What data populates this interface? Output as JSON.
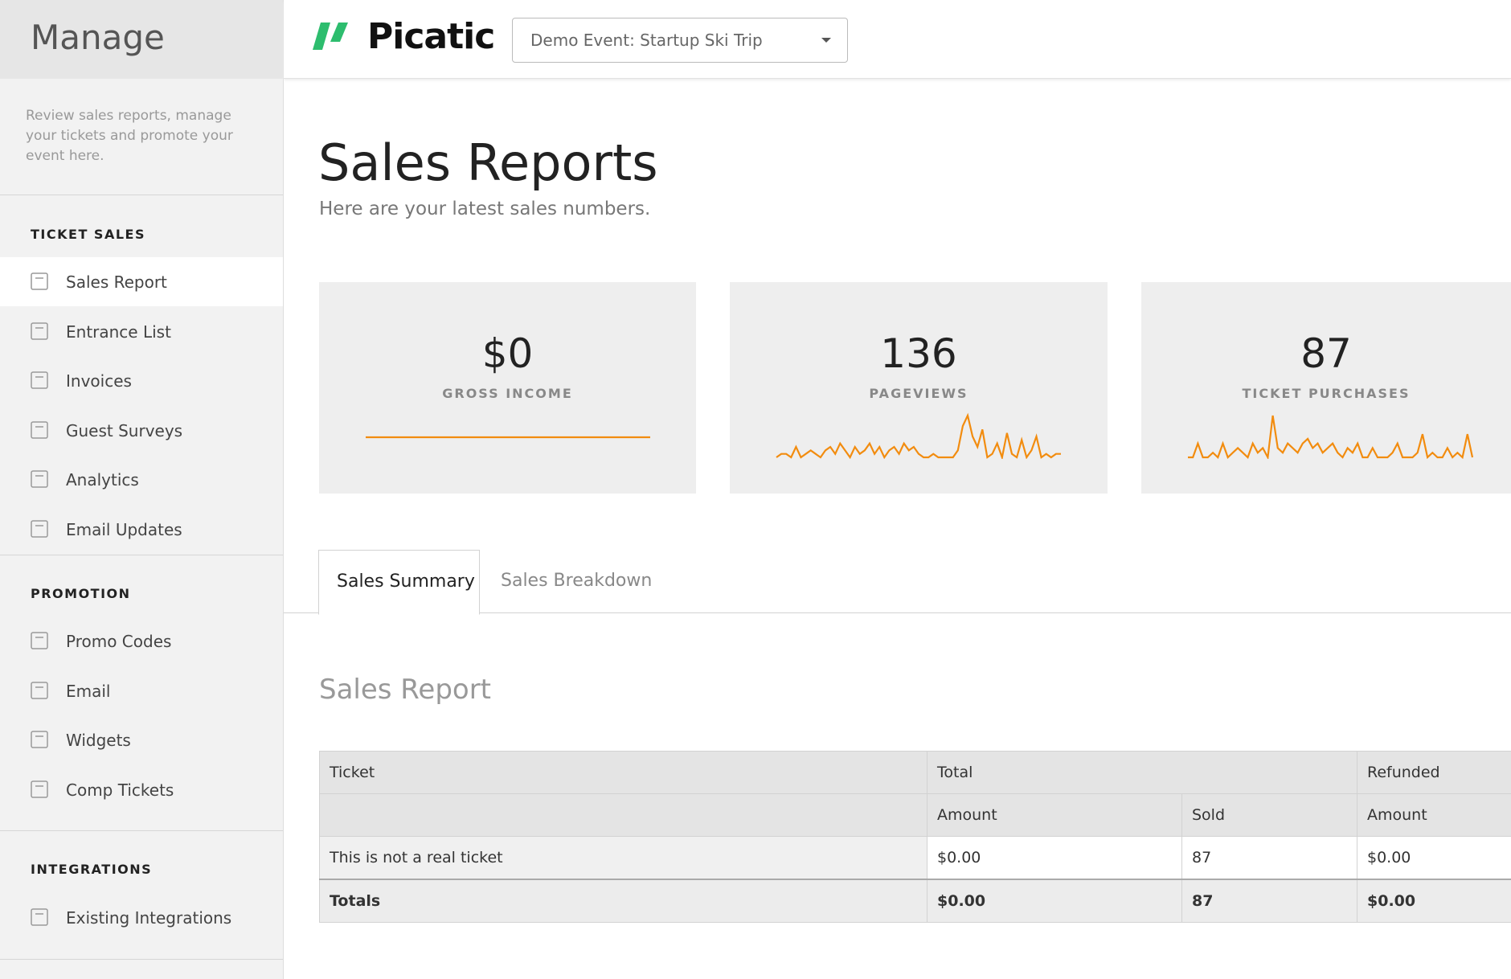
{
  "sidebar": {
    "title": "Manage",
    "description": "Review sales reports, manage your tickets and promote your event here.",
    "sections": [
      {
        "heading": "TICKET SALES",
        "items": [
          "Sales Report",
          "Entrance List",
          "Invoices",
          "Guest Surveys",
          "Analytics",
          "Email Updates"
        ]
      },
      {
        "heading": "PROMOTION",
        "items": [
          "Promo Codes",
          "Email",
          "Widgets",
          "Comp Tickets"
        ]
      },
      {
        "heading": "INTEGRATIONS",
        "items": [
          "Existing Integrations"
        ]
      }
    ]
  },
  "header": {
    "logo": "Picatic",
    "event_select": "Demo Event: Startup Ski Trip"
  },
  "page": {
    "title": "Sales Reports",
    "subtitle": "Here are your latest sales numbers."
  },
  "stats": [
    {
      "value": "$0",
      "label": "GROSS INCOME",
      "sparkline": [
        0,
        0,
        0,
        0,
        0,
        0,
        0,
        0,
        0,
        0,
        0,
        0,
        0,
        0,
        0,
        0,
        0,
        0,
        0,
        0
      ]
    },
    {
      "value": 136,
      "label": "PAGEVIEWS",
      "sparkline": [
        0,
        1,
        1,
        0,
        3,
        0,
        1,
        2,
        1,
        0,
        2,
        3,
        1,
        4,
        2,
        0,
        3,
        1,
        2,
        4,
        1,
        3,
        0,
        2,
        3,
        1,
        4,
        2,
        3,
        1,
        0,
        0,
        1,
        0,
        0,
        0,
        0,
        2,
        9,
        12,
        6,
        3,
        8,
        0,
        1,
        4,
        0,
        7,
        1,
        0,
        5,
        0,
        2,
        6,
        0,
        1,
        0,
        1,
        1
      ]
    },
    {
      "value": 87,
      "label": "TICKET PURCHASES",
      "sparkline": [
        0,
        0,
        3,
        0,
        0,
        1,
        0,
        3,
        0,
        1,
        2,
        1,
        0,
        3,
        1,
        2,
        0,
        9,
        2,
        1,
        3,
        2,
        1,
        3,
        4,
        2,
        3,
        1,
        2,
        3,
        1,
        0,
        2,
        1,
        3,
        0,
        0,
        2,
        0,
        0,
        0,
        1,
        3,
        0,
        0,
        0,
        1,
        5,
        0,
        1,
        0,
        0,
        2,
        0,
        1,
        0,
        5,
        0
      ]
    }
  ],
  "tabs": [
    "Sales Summary",
    "Sales Breakdown"
  ],
  "report": {
    "title": "Sales Report",
    "header": {
      "ticket": "Ticket",
      "total": "Total",
      "refunded": "Refunded"
    },
    "subheader": [
      "Amount",
      "Sold",
      "Amount"
    ],
    "rows": [
      [
        "This is not a real ticket",
        "$0.00",
        "87",
        "$0.00"
      ]
    ],
    "totals": [
      "Totals",
      "$0.00",
      "87",
      "$0.00"
    ]
  }
}
